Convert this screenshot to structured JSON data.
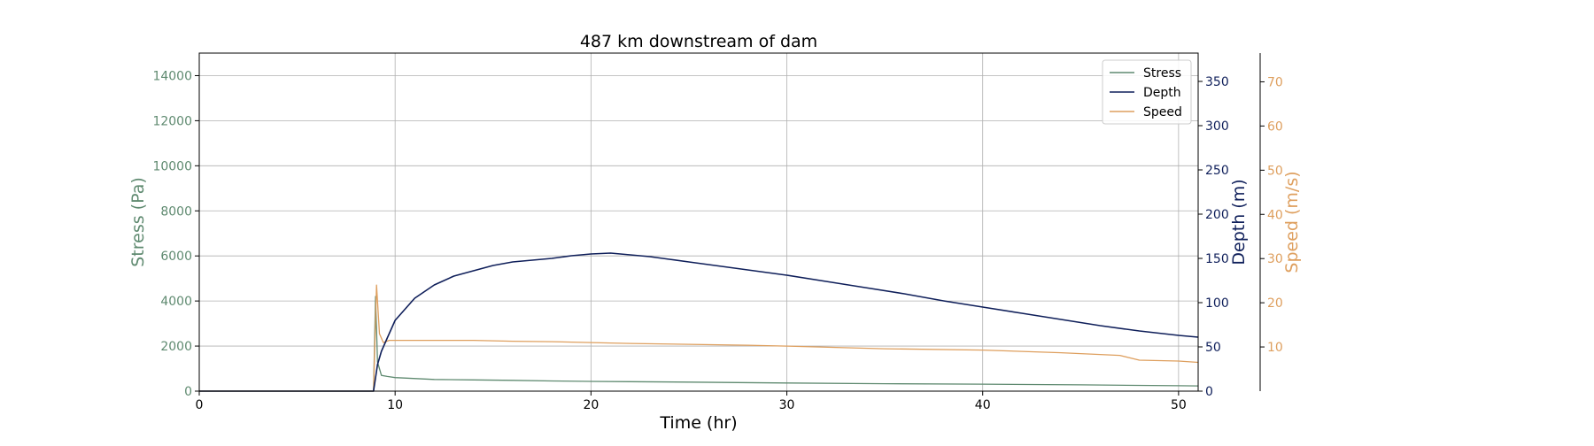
{
  "chart_data": {
    "type": "line",
    "title": "487 km downstream of dam",
    "xlabel": "Time (hr)",
    "xlim": [
      0,
      51
    ],
    "x_ticks": [
      "0",
      "10",
      "20",
      "30",
      "40",
      "50"
    ],
    "grid": true,
    "legend_position": "top-right",
    "axes": {
      "stress": {
        "label": "Stress (Pa)",
        "ylim": [
          0,
          15000
        ],
        "ticks": [
          "0",
          "2000",
          "4000",
          "6000",
          "8000",
          "10000",
          "12000",
          "14000"
        ],
        "color": "#5f8a70",
        "side": "left"
      },
      "depth": {
        "label": "Depth (m)",
        "ylim": [
          0,
          382
        ],
        "ticks": [
          "0",
          "50",
          "100",
          "150",
          "200",
          "250",
          "300",
          "350"
        ],
        "color": "#0f1f5a",
        "side": "right"
      },
      "speed": {
        "label": "Speed (m/s)",
        "ylim": [
          0,
          76.5
        ],
        "ticks": [
          "10",
          "20",
          "30",
          "40",
          "50",
          "60",
          "70"
        ],
        "color": "#de9f5e",
        "side": "right-offset"
      }
    },
    "series": [
      {
        "name": "Stress",
        "axis": "stress",
        "color": "#5f8a70",
        "x": [
          0,
          8.9,
          9.0,
          9.1,
          9.3,
          9.6,
          10,
          12,
          14,
          16,
          18,
          20,
          22,
          25,
          30,
          35,
          40,
          45,
          50,
          51
        ],
        "y": [
          0,
          0,
          4200,
          1300,
          700,
          650,
          600,
          520,
          500,
          480,
          450,
          430,
          420,
          400,
          360,
          330,
          310,
          280,
          240,
          230
        ]
      },
      {
        "name": "Depth",
        "axis": "depth",
        "color": "#0f1f5a",
        "x": [
          0,
          8.9,
          9.1,
          9.3,
          9.6,
          10,
          11,
          12,
          13,
          14,
          15,
          16,
          17,
          18,
          19,
          20,
          21,
          22,
          23,
          24,
          25,
          26,
          27,
          28,
          30,
          32,
          34,
          36,
          38,
          40,
          42,
          44,
          46,
          48,
          50,
          51
        ],
        "y": [
          0,
          0,
          30,
          45,
          60,
          80,
          105,
          120,
          130,
          136,
          142,
          146,
          148,
          150,
          153,
          155,
          156,
          154,
          152,
          149,
          146,
          143,
          140,
          137,
          131,
          124,
          117,
          110,
          102,
          95,
          88,
          81,
          74,
          68,
          63,
          61
        ]
      },
      {
        "name": "Speed",
        "axis": "speed",
        "color": "#de9f5e",
        "x": [
          0,
          8.9,
          9.05,
          9.2,
          9.4,
          9.7,
          10,
          12,
          14,
          16,
          18,
          20,
          22,
          25,
          28,
          30,
          35,
          40,
          44,
          47,
          48,
          50,
          51
        ],
        "y": [
          0,
          0,
          24,
          13,
          11,
          11.5,
          11.5,
          11.5,
          11.5,
          11.3,
          11.2,
          11,
          10.8,
          10.6,
          10.4,
          10.2,
          9.6,
          9.3,
          8.7,
          8.1,
          7,
          6.8,
          6.5
        ]
      }
    ]
  }
}
